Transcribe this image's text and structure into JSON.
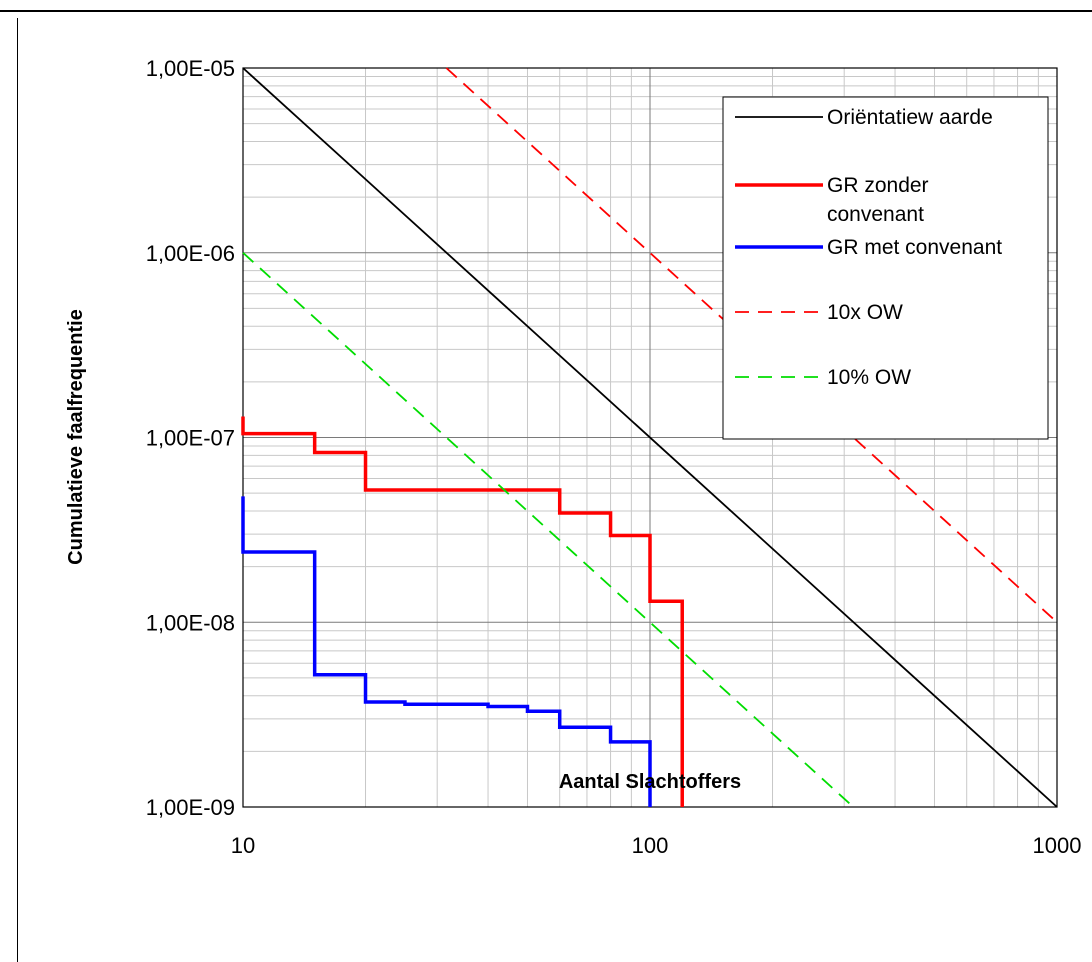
{
  "chart_data": {
    "type": "line",
    "xlabel": "Aantal Slachtoffers",
    "ylabel": "Cumulatieve faalfrequentie",
    "x_scale": "log",
    "y_scale": "log",
    "xlim": [
      10,
      1000
    ],
    "ylim": [
      1e-09,
      1e-05
    ],
    "x_ticks": [
      {
        "value": 10,
        "label": "10"
      },
      {
        "value": 100,
        "label": "100"
      },
      {
        "value": 1000,
        "label": "1000"
      }
    ],
    "y_ticks": [
      {
        "value": 1e-09,
        "label": "1,00E-09"
      },
      {
        "value": 1e-08,
        "label": "1,00E-08"
      },
      {
        "value": 1e-07,
        "label": "1,00E-07"
      },
      {
        "value": 1e-06,
        "label": "1,00E-06"
      },
      {
        "value": 1e-05,
        "label": "1,00E-05"
      }
    ],
    "grid": true,
    "legend_position": "top-right",
    "series": [
      {
        "name": "Oriëntatiew aarde",
        "color": "#000000",
        "dash": "solid",
        "width": "thin",
        "points": [
          [
            10,
            1e-05
          ],
          [
            1000,
            1e-09
          ]
        ]
      },
      {
        "name": "GR zonder convenant",
        "color": "#ff0000",
        "dash": "solid",
        "width": "thick",
        "points": [
          [
            10,
            1.3e-07
          ],
          [
            10,
            1.05e-07
          ],
          [
            15,
            1.05e-07
          ],
          [
            15,
            8.3e-08
          ],
          [
            20,
            8.3e-08
          ],
          [
            20,
            5.2e-08
          ],
          [
            60,
            5.2e-08
          ],
          [
            60,
            3.9e-08
          ],
          [
            80,
            3.9e-08
          ],
          [
            80,
            2.95e-08
          ],
          [
            100,
            2.95e-08
          ],
          [
            100,
            1.3e-08
          ],
          [
            120,
            1.3e-08
          ],
          [
            120,
            1e-09
          ]
        ]
      },
      {
        "name": "GR met convenant",
        "color": "#0000ff",
        "dash": "solid",
        "width": "thick",
        "points": [
          [
            10,
            4.8e-08
          ],
          [
            10,
            2.4e-08
          ],
          [
            15,
            2.4e-08
          ],
          [
            15,
            5.2e-09
          ],
          [
            20,
            5.2e-09
          ],
          [
            20,
            3.7e-09
          ],
          [
            25,
            3.7e-09
          ],
          [
            25,
            3.6e-09
          ],
          [
            40,
            3.6e-09
          ],
          [
            40,
            3.5e-09
          ],
          [
            50,
            3.5e-09
          ],
          [
            50,
            3.3e-09
          ],
          [
            60,
            3.3e-09
          ],
          [
            60,
            2.7e-09
          ],
          [
            80,
            2.7e-09
          ],
          [
            80,
            2.25e-09
          ],
          [
            100,
            2.25e-09
          ],
          [
            100,
            1e-09
          ]
        ]
      },
      {
        "name": "10x OW",
        "color": "#ff0000",
        "dash": "dashed",
        "width": "thin",
        "points": [
          [
            31.6,
            1e-05
          ],
          [
            1000,
            1e-08
          ]
        ]
      },
      {
        "name": "10% OW",
        "color": "#00dd00",
        "dash": "dashed",
        "width": "thin",
        "points": [
          [
            10,
            1e-06
          ],
          [
            316,
            1e-09
          ]
        ]
      }
    ],
    "legend": {
      "entries": [
        {
          "series": 0,
          "lines": [
            "Oriëntatiew aarde"
          ]
        },
        {
          "series": 1,
          "lines": [
            "GR zonder",
            "convenant"
          ]
        },
        {
          "series": 2,
          "lines": [
            "GR met convenant"
          ]
        },
        {
          "series": 3,
          "lines": [
            "10x OW"
          ]
        },
        {
          "series": 4,
          "lines": [
            "10% OW"
          ]
        }
      ]
    }
  }
}
